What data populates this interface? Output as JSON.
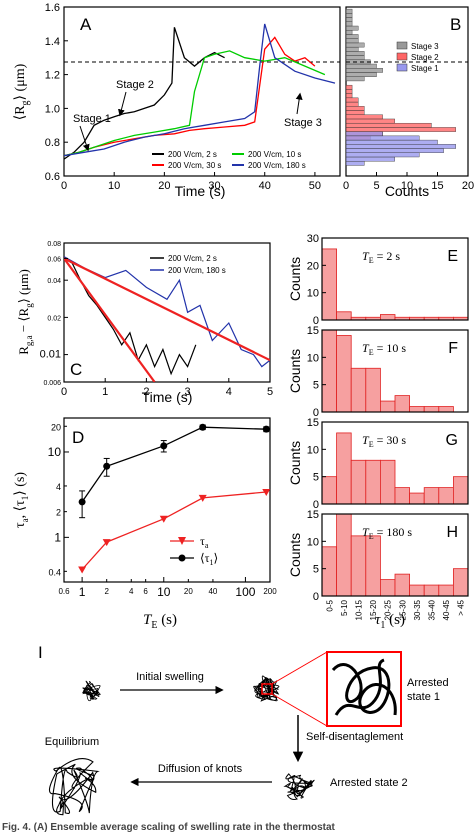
{
  "chart_data": [
    {
      "panel": "A",
      "type": "line",
      "xlabel": "Time (s)",
      "ylabel": "⟨Rg⟩ (μm)",
      "xlim": [
        0,
        55
      ],
      "ylim": [
        0.6,
        1.6
      ],
      "xticks": [
        "0",
        "10",
        "20",
        "30",
        "40",
        "50"
      ],
      "yticks": [
        "0.6",
        "0.8",
        "1.0",
        "1.2",
        "1.4",
        "1.6"
      ],
      "reference_line": {
        "y": 1.3,
        "style": "dashed"
      },
      "annotations": [
        "Stage 1",
        "Stage 2",
        "Stage 3"
      ],
      "legend": [
        "200 V/cm, 2 s",
        "200 V/cm, 30 s",
        "200 V/cm, 10 s",
        "200 V/cm, 180 s"
      ],
      "series": [
        {
          "name": "200 V/cm, 2 s",
          "color": "#000000",
          "x": [
            0,
            2,
            4,
            6,
            8,
            10,
            12,
            14,
            16,
            18,
            20,
            21.5,
            22,
            24,
            26,
            28,
            30,
            32
          ],
          "y": [
            0.7,
            0.74,
            0.8,
            0.9,
            0.93,
            0.95,
            0.97,
            0.98,
            1.0,
            1.02,
            1.08,
            1.15,
            1.48,
            1.3,
            1.25,
            1.3,
            1.33,
            1.3
          ]
        },
        {
          "name": "200 V/cm, 30 s",
          "color": "#ff0000",
          "x": [
            0,
            3,
            6,
            10,
            14,
            18,
            22,
            25,
            28,
            32,
            36,
            38,
            40,
            42,
            44,
            46,
            48,
            50
          ],
          "y": [
            0.72,
            0.74,
            0.77,
            0.8,
            0.82,
            0.84,
            0.85,
            0.87,
            0.88,
            0.89,
            0.9,
            0.92,
            1.35,
            1.42,
            1.32,
            1.28,
            1.3,
            1.25
          ]
        },
        {
          "name": "200 V/cm, 10 s",
          "color": "#00cc00",
          "x": [
            0,
            3,
            6,
            10,
            14,
            18,
            22,
            25,
            26,
            28,
            30,
            33,
            36,
            40,
            44,
            48,
            52
          ],
          "y": [
            0.72,
            0.74,
            0.77,
            0.81,
            0.84,
            0.86,
            0.88,
            0.9,
            1.1,
            1.3,
            1.32,
            1.34,
            1.3,
            1.28,
            1.3,
            1.25,
            1.2
          ]
        },
        {
          "name": "200 V/cm, 180 s",
          "color": "#2233aa",
          "x": [
            0,
            4,
            8,
            12,
            16,
            20,
            24,
            28,
            32,
            36,
            38,
            39,
            40,
            42,
            46,
            50,
            54
          ],
          "y": [
            0.72,
            0.74,
            0.76,
            0.8,
            0.83,
            0.85,
            0.88,
            0.9,
            0.92,
            0.94,
            0.98,
            1.25,
            1.5,
            1.3,
            1.22,
            1.18,
            1.15
          ]
        }
      ]
    },
    {
      "panel": "B",
      "type": "bar",
      "orientation": "horizontal",
      "xlabel": "Counts",
      "xlim": [
        0,
        20
      ],
      "xticks": [
        "0",
        "5",
        "10",
        "15",
        "20"
      ],
      "legend": [
        "Stage 3",
        "Stage 2",
        "Stage 1"
      ],
      "series": [
        {
          "name": "Stage 3",
          "color": "#999999",
          "bins": [
            1.175,
            1.2,
            1.225,
            1.25,
            1.275,
            1.3,
            1.325,
            1.35,
            1.375,
            1.4,
            1.425,
            1.45,
            1.475,
            1.5,
            1.525,
            1.55,
            1.575
          ],
          "values": [
            3,
            5,
            6,
            5,
            4,
            3,
            3,
            2,
            3,
            2,
            2,
            1,
            2,
            1,
            1,
            1,
            1
          ]
        },
        {
          "name": "Stage 2",
          "color": "#ff6666",
          "bins": [
            0.825,
            0.85,
            0.875,
            0.9,
            0.925,
            0.95,
            0.975,
            1.0,
            1.025,
            1.05,
            1.075,
            1.1,
            1.125
          ],
          "values": [
            4,
            6,
            18,
            14,
            8,
            6,
            3,
            3,
            2,
            2,
            1,
            1,
            1
          ]
        },
        {
          "name": "Stage 1",
          "color": "#9999ee",
          "bins": [
            0.675,
            0.7,
            0.725,
            0.75,
            0.775,
            0.8,
            0.825,
            0.85
          ],
          "values": [
            3,
            8,
            12,
            16,
            18,
            15,
            12,
            6
          ]
        }
      ]
    },
    {
      "panel": "C",
      "type": "line",
      "xlabel": "Time (s)",
      "ylabel": "Rg,a − ⟨Rg⟩ (μm)",
      "yscale": "log",
      "xlim": [
        0,
        5
      ],
      "ylim": [
        0.006,
        0.08
      ],
      "xticks": [
        "0",
        "1",
        "2",
        "3",
        "4",
        "5"
      ],
      "yticks": [
        "0.006",
        "0.01",
        "0.02",
        "0.04",
        "0.06",
        "0.08"
      ],
      "legend": [
        "200 V/cm, 2 s",
        "200 V/cm, 180 s"
      ],
      "series": [
        {
          "name": "200 V/cm, 2 s",
          "color": "#000000",
          "x": [
            0,
            0.2,
            0.4,
            0.6,
            0.8,
            1.0,
            1.2,
            1.4,
            1.6,
            1.8,
            2.0,
            2.2,
            2.4,
            2.6,
            2.8,
            3.0,
            3.2
          ],
          "y": [
            0.06,
            0.055,
            0.04,
            0.03,
            0.025,
            0.02,
            0.016,
            0.012,
            0.015,
            0.009,
            0.012,
            0.008,
            0.011,
            0.007,
            0.01,
            0.008,
            0.012
          ]
        },
        {
          "name": "200 V/cm, 180 s",
          "color": "#2233aa",
          "x": [
            0,
            0.5,
            1.0,
            1.5,
            2.0,
            2.5,
            2.8,
            3.0,
            3.3,
            3.6,
            4.0,
            4.3,
            4.6,
            4.8,
            5.0
          ],
          "y": [
            0.062,
            0.05,
            0.042,
            0.048,
            0.035,
            0.028,
            0.04,
            0.022,
            0.025,
            0.013,
            0.018,
            0.011,
            0.01,
            0.008,
            0.009
          ]
        },
        {
          "name": "fit 2 s",
          "color": "#ee2222",
          "x": [
            0,
            2.2
          ],
          "y": [
            0.06,
            0.006
          ]
        },
        {
          "name": "fit 180 s",
          "color": "#ee2222",
          "x": [
            0,
            5
          ],
          "y": [
            0.06,
            0.009
          ]
        }
      ]
    },
    {
      "panel": "D",
      "type": "line",
      "xlabel": "TE (s)",
      "ylabel": "τa, ⟨τ1⟩ (s)",
      "xscale": "log",
      "yscale": "log",
      "xlim": [
        0.6,
        200
      ],
      "ylim": [
        0.3,
        25
      ],
      "xticks": [
        "0.6",
        "1",
        "2",
        "4",
        "6",
        "10",
        "20",
        "40",
        "100",
        "200"
      ],
      "yticks": [
        "0.4",
        "1",
        "2",
        "4",
        "10",
        "20"
      ],
      "legend": [
        "τa",
        "⟨τ1⟩"
      ],
      "series": [
        {
          "name": "τa",
          "color": "#ee2222",
          "marker": "triangle-down",
          "x": [
            1,
            2,
            10,
            30,
            180
          ],
          "y": [
            0.42,
            0.88,
            1.65,
            2.9,
            3.4
          ]
        },
        {
          "name": "⟨τ1⟩",
          "color": "#000000",
          "marker": "circle",
          "x": [
            1,
            2,
            10,
            30,
            180
          ],
          "y": [
            2.6,
            6.8,
            11.8,
            19.5,
            18.5
          ],
          "err": [
            0.9,
            1.6,
            1.8,
            1.2,
            1.2
          ]
        }
      ]
    },
    {
      "panel": "E-H",
      "type": "bar",
      "xlabel": "τ1 (s)",
      "ylabel": "Counts",
      "categories": [
        "0-5",
        "5-10",
        "10-15",
        "15-20",
        "20-25",
        "25-30",
        "30-35",
        "35-40",
        "40-45",
        "> 45"
      ],
      "subplots": [
        {
          "label": "E",
          "TE": "TE = 2 s",
          "ylim": [
            0,
            30
          ],
          "yticks": [
            "0",
            "10",
            "20",
            "30"
          ],
          "values": [
            26,
            3,
            1,
            1,
            2,
            1,
            1,
            1,
            1,
            1
          ]
        },
        {
          "label": "F",
          "TE": "TE = 10 s",
          "ylim": [
            0,
            15
          ],
          "yticks": [
            "0",
            "5",
            "10",
            "15"
          ],
          "values": [
            15,
            14,
            8,
            8,
            2,
            3,
            1,
            1,
            1,
            0
          ]
        },
        {
          "label": "G",
          "TE": "TE = 30 s",
          "ylim": [
            0,
            15
          ],
          "yticks": [
            "0",
            "5",
            "10",
            "15"
          ],
          "values": [
            5,
            13,
            8,
            8,
            8,
            3,
            2,
            3,
            3,
            5
          ]
        },
        {
          "label": "H",
          "TE": "TE = 180 s",
          "ylim": [
            0,
            15
          ],
          "yticks": [
            "0",
            "5",
            "10",
            "15"
          ],
          "values": [
            9,
            15,
            11,
            11,
            3,
            4,
            2,
            2,
            2,
            5
          ]
        }
      ]
    }
  ],
  "labels": {
    "A": "A",
    "B": "B",
    "C": "C",
    "D": "D",
    "E": "E",
    "F": "F",
    "G": "G",
    "H": "H",
    "I": "I",
    "stage1": "Stage 1",
    "stage2": "Stage 2",
    "stage3": "Stage 3",
    "time_a": "Time (s)",
    "counts_b": "Counts",
    "time_c": "Time (s)",
    "te_axis": "T",
    "te_sub": "E",
    "te_unit": " (s)",
    "tau_axis": "τ",
    "tau_sub": "1",
    "tau_unit": " (s)",
    "counts": "Counts",
    "te2": " = 2 s",
    "te10": " = 10 s",
    "te30": " = 30 s",
    "te180": " = 180 s",
    "rg_unit": " (μm)",
    "ylab_d_tau": "τ",
    "ylab_d_a": "a",
    "ylab_d_mid": ", ⟨τ",
    "ylab_d_1": "1",
    "ylab_d_end": "⟩ (s)",
    "leg_tau_a": "τ",
    "leg_tau_a_sub": "a",
    "leg_tau1": "⟨τ",
    "leg_tau1_sub": "1",
    "leg_tau1_end": "⟩",
    "legA": [
      "200 V/cm, 2 s",
      "200 V/cm, 30 s",
      "200 V/cm, 10 s",
      "200 V/cm, 180 s"
    ],
    "legB": [
      "Stage 3",
      "Stage 2",
      "Stage 1"
    ],
    "legC": [
      "200 V/cm, 2 s",
      "200 V/cm, 180 s"
    ]
  },
  "diagram": {
    "initial_swelling": "Initial swelling",
    "arrested_state_1_line1": "Arrested",
    "arrested_state_1_line2": "state 1",
    "self_disentanglement": "Self-disentaglement",
    "arrested_state_2": "Arrested state 2",
    "equilibrium": "Equilibrium",
    "diffusion_of_knots": "Diffusion of knots"
  },
  "caption": "Fig. 4.  (A) Ensemble average scaling of swelling rate in the thermostat"
}
